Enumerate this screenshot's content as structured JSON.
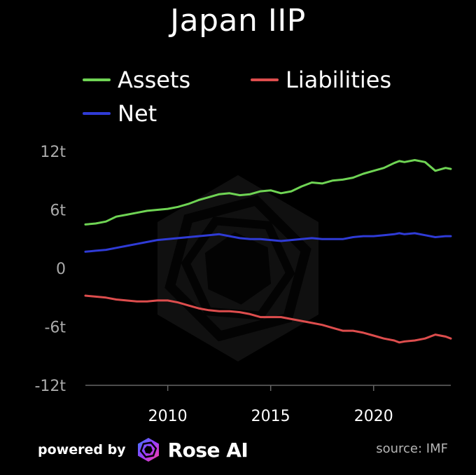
{
  "title": "Japan IIP",
  "colors": {
    "assets": "#6fd454",
    "liabilities": "#dd4d4d",
    "net": "#2f3bd6"
  },
  "legend": [
    {
      "key": "assets",
      "label": "Assets"
    },
    {
      "key": "liabilities",
      "label": "Liabilities"
    },
    {
      "key": "net",
      "label": "Net"
    }
  ],
  "footer": {
    "powered_by": "powered by",
    "brand": "Rose AI",
    "source": "source: IMF"
  },
  "chart_data": {
    "type": "line",
    "title": "Japan IIP",
    "xlabel": "",
    "ylabel": "",
    "xlim": [
      2006,
      2023.75
    ],
    "ylim": [
      -12,
      12
    ],
    "xticks": [
      2010,
      2015,
      2020
    ],
    "xtick_labels": [
      "2010",
      "2015",
      "2020"
    ],
    "yticks": [
      12,
      6,
      0,
      -6,
      -12
    ],
    "ytick_labels": [
      "12t",
      "6t",
      "0",
      "-6t",
      "-12t"
    ],
    "legend_position": "top-left",
    "grid": false,
    "x": [
      2006.0,
      2006.5,
      2007.0,
      2007.5,
      2008.0,
      2008.5,
      2009.0,
      2009.5,
      2010.0,
      2010.5,
      2011.0,
      2011.5,
      2012.0,
      2012.5,
      2013.0,
      2013.5,
      2014.0,
      2014.5,
      2015.0,
      2015.5,
      2016.0,
      2016.5,
      2017.0,
      2017.5,
      2018.0,
      2018.5,
      2019.0,
      2019.5,
      2020.0,
      2020.5,
      2021.0,
      2021.25,
      2021.5,
      2022.0,
      2022.5,
      2023.0,
      2023.5,
      2023.75
    ],
    "series": [
      {
        "name": "Assets",
        "key": "assets",
        "values": [
          4.5,
          4.6,
          4.8,
          5.3,
          5.5,
          5.7,
          5.9,
          6.0,
          6.1,
          6.3,
          6.6,
          7.0,
          7.3,
          7.6,
          7.7,
          7.5,
          7.6,
          7.9,
          8.0,
          7.7,
          7.9,
          8.4,
          8.8,
          8.7,
          9.0,
          9.1,
          9.3,
          9.7,
          10.0,
          10.3,
          10.8,
          11.0,
          10.9,
          11.1,
          10.9,
          10.0,
          10.3,
          10.2
        ]
      },
      {
        "name": "Liabilities",
        "key": "liabilities",
        "values": [
          -2.8,
          -2.9,
          -3.0,
          -3.2,
          -3.3,
          -3.4,
          -3.4,
          -3.3,
          -3.3,
          -3.5,
          -3.8,
          -4.1,
          -4.3,
          -4.4,
          -4.4,
          -4.5,
          -4.7,
          -5.0,
          -5.0,
          -5.0,
          -5.2,
          -5.4,
          -5.6,
          -5.8,
          -6.1,
          -6.4,
          -6.4,
          -6.6,
          -6.9,
          -7.2,
          -7.4,
          -7.6,
          -7.5,
          -7.4,
          -7.2,
          -6.8,
          -7.0,
          -7.2
        ]
      },
      {
        "name": "Net",
        "key": "net",
        "values": [
          1.7,
          1.8,
          1.9,
          2.1,
          2.3,
          2.5,
          2.7,
          2.9,
          3.0,
          3.1,
          3.2,
          3.3,
          3.4,
          3.5,
          3.3,
          3.1,
          3.0,
          3.0,
          2.9,
          2.8,
          2.9,
          3.0,
          3.1,
          3.0,
          3.0,
          3.0,
          3.2,
          3.3,
          3.3,
          3.4,
          3.5,
          3.6,
          3.5,
          3.6,
          3.4,
          3.2,
          3.3,
          3.3
        ]
      }
    ]
  }
}
